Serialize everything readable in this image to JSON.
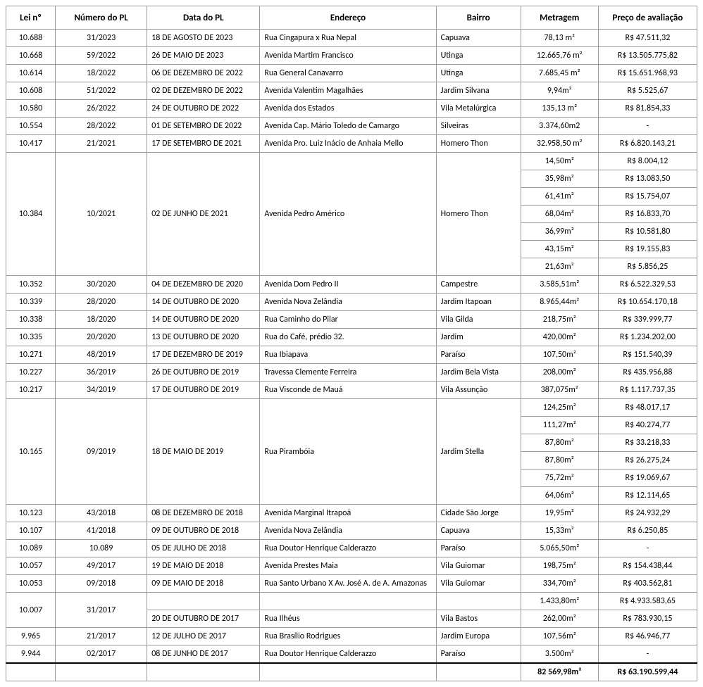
{
  "headers": {
    "lei": "Lei nº",
    "pl": "Número do PL",
    "data": "Data do PL",
    "endereco": "Endereço",
    "bairro": "Bairro",
    "metragem": "Metragem",
    "preco": "Preço de avaliação"
  },
  "rows": [
    {
      "lei": "10.688",
      "pl": "31/2023",
      "data": "18 DE AGOSTO DE 2023",
      "end": "Rua Cingapura x Rua Nepal",
      "bai": "Capuava",
      "subs": [
        {
          "met": "78,13 m²",
          "preco": "R$ 47.511,32"
        }
      ]
    },
    {
      "lei": "10.668",
      "pl": "59/2022",
      "data": "26 DE MAIO DE 2023",
      "end": "Avenida Martim Francisco",
      "bai": "Utinga",
      "subs": [
        {
          "met": "12.665,76 m²",
          "preco": "R$ 13.505.775,82"
        }
      ]
    },
    {
      "lei": "10.614",
      "pl": "18/2022",
      "data": "06 DE DEZEMBRO DE 2022",
      "end": "Rua General Canavarro",
      "bai": "Utinga",
      "subs": [
        {
          "met": "7.685,45 m²",
          "preco": "R$ 15.651.968,93"
        }
      ]
    },
    {
      "lei": "10.608",
      "pl": "51/2022",
      "data": "02 DE DEZEMBRO DE 2022",
      "end": "Avenida Valentim Magalhães",
      "bai": "Jardim Silvana",
      "subs": [
        {
          "met": "9,94m²",
          "preco": "R$ 5.525,67"
        }
      ]
    },
    {
      "lei": "10.580",
      "pl": "26/2022",
      "data": "24 DE OUTUBRO DE 2022",
      "end": "Avenida dos Estados",
      "bai": "Vila Metalúrgica",
      "subs": [
        {
          "met": "135,13 m²",
          "preco": "R$ 81.854,33"
        }
      ]
    },
    {
      "lei": "10.554",
      "pl": "28/2022",
      "data": "01 DE SETEMBRO DE 2022",
      "end": "Avenida Cap. Mário Toledo de Camargo",
      "bai": "Silveiras",
      "subs": [
        {
          "met": "3.374,60m2",
          "preco": "-"
        }
      ]
    },
    {
      "lei": "10.417",
      "pl": "21/2021",
      "data": "17 DE SETEMBRO DE 2021",
      "end": "Avenida Pro. Luiz Inácio de Anhaia Mello",
      "bai": "Homero Thon",
      "subs": [
        {
          "met": "32.958,50 m²",
          "preco": "R$ 6.820.143,21"
        }
      ]
    },
    {
      "lei": "10.384",
      "pl": "10/2021",
      "data": "02 DE JUNHO DE 2021",
      "end": "Avenida Pedro Américo",
      "bai": "Homero Thon",
      "subs": [
        {
          "met": "14,50m²",
          "preco": "R$ 8.004,12"
        },
        {
          "met": "35,98m²",
          "preco": "R$ 13.083,50"
        },
        {
          "met": "61,41m²",
          "preco": "R$ 15.754,07"
        },
        {
          "met": "68,04m²",
          "preco": "R$ 16.833,70"
        },
        {
          "met": "36,99m²",
          "preco": "R$ 10.581,80"
        },
        {
          "met": "43,15m²",
          "preco": "R$ 19.155,83"
        },
        {
          "met": "21,63m²",
          "preco": "R$ 5.856,25"
        }
      ]
    },
    {
      "lei": "10.352",
      "pl": "30/2020",
      "data": "04 DE DEZEMBRO DE 2020",
      "end": "Avenida Dom Pedro II",
      "bai": "Campestre",
      "subs": [
        {
          "met": "3.585,51m²",
          "preco": "R$ 6.522.329,53"
        }
      ]
    },
    {
      "lei": "10.339",
      "pl": "28/2020",
      "data": "14 DE OUTUBRO DE 2020",
      "end": "Avenida Nova Zelândia",
      "bai": "Jardim Itapoan",
      "subs": [
        {
          "met": "8.965,44m²",
          "preco": "R$ 10.654.170,18"
        }
      ]
    },
    {
      "lei": "10.338",
      "pl": "18/2020",
      "data": "14 DE OUTUBRO DE 2020",
      "end": "Rua Caminho do Pilar",
      "bai": "Vila Gilda",
      "subs": [
        {
          "met": "218,75m²",
          "preco": "R$ 339.999,77"
        }
      ]
    },
    {
      "lei": "10.335",
      "pl": "20/2020",
      "data": "13 DE OUTUBRO DE 2020",
      "end": "Rua do Café, prédio 32.",
      "bai": "Jardim",
      "subs": [
        {
          "met": "420,00m²",
          "preco": "R$ 1.234.202,00"
        }
      ]
    },
    {
      "lei": "10.271",
      "pl": "48/2019",
      "data": "17 DE DEZEMBRO DE 2019",
      "end": "Rua Ibiapava",
      "bai": "Paraíso",
      "subs": [
        {
          "met": "107,50m²",
          "preco": "R$ 151.540,39"
        }
      ]
    },
    {
      "lei": "10.227",
      "pl": "36/2019",
      "data": "26 DE OUTUBRO DE 2019",
      "end": "Travessa Clemente Ferreira",
      "bai": "Jardim Bela Vista",
      "subs": [
        {
          "met": "208,00m²",
          "preco": "R$ 435.956,88"
        }
      ]
    },
    {
      "lei": "10.217",
      "pl": "34/2019",
      "data": "17 DE OUTUBRO DE 2019",
      "end": "Rua Visconde de Mauá",
      "bai": "Vila Assunção",
      "subs": [
        {
          "met": "387,075m²",
          "preco": "R$ 1.117.737,35"
        }
      ]
    },
    {
      "lei": "10.165",
      "pl": "09/2019",
      "data": "18 DE MAIO DE 2019",
      "end": "Rua Pirambóia",
      "bai": "Jardim Stella",
      "subs": [
        {
          "met": "124,25m²",
          "preco": "R$ 48.017,17"
        },
        {
          "met": "111,27m²",
          "preco": "R$ 40.274,77"
        },
        {
          "met": "87,80m²",
          "preco": "R$ 33.218,33"
        },
        {
          "met": "87,80m²",
          "preco": "R$ 26.275,24"
        },
        {
          "met": "75,72m²",
          "preco": "R$ 19.069,67"
        },
        {
          "met": "64,06m²",
          "preco": "R$ 12.114,65"
        }
      ]
    },
    {
      "lei": "10.123",
      "pl": "43/2018",
      "data": "08 DE DEZEMBRO DE 2018",
      "end": "Avenida Marginal Itrapoã",
      "bai": "Cidade São Jorge",
      "subs": [
        {
          "met": "19,95m²",
          "preco": "R$ 24.932,29"
        }
      ]
    },
    {
      "lei": "10.107",
      "pl": "41/2018",
      "data": "09 DE OUTUBRO DE 2018",
      "end": "Avenida Nova Zelândia",
      "bai": "Capuava",
      "subs": [
        {
          "met": "15,33m²",
          "preco": "R$ 6.250,85"
        }
      ]
    },
    {
      "lei": "10.089",
      "pl": "10.089",
      "data": "05 DE JULHO DE 2018",
      "end": "Rua Doutor Henrique Calderazzo",
      "bai": "Paraíso",
      "subs": [
        {
          "met": "5.065,50m²",
          "preco": "-"
        }
      ]
    },
    {
      "lei": "10.057",
      "pl": "49/2017",
      "data": "19 DE MAIO DE 2018",
      "end": "Avenida Prestes Maia",
      "bai": "Vila Guiomar",
      "subs": [
        {
          "met": "198,75m²",
          "preco": "R$ 154.438,44"
        }
      ]
    },
    {
      "lei": "10.053",
      "pl": "09/2018",
      "data": "09 DE MAIO DE 2018",
      "end": "Rua Santo Urbano X Av. José A. de A. Amazonas",
      "bai": "Vila Guiomar",
      "subs": [
        {
          "met": "334,70m²",
          "preco": "R$ 403.562,81"
        }
      ]
    },
    {
      "lei": "10.007",
      "pl": "31/2017",
      "data2": "20 DE OUTUBRO DE 2017",
      "end2": "Rua Ilhéus",
      "bai2": "Vila Bastos",
      "special": true,
      "subs": [
        {
          "met": "1.433,80m²",
          "preco": "R$ 4.933.583,65"
        },
        {
          "met": "262,00m²",
          "preco": "R$ 783.930,15"
        }
      ]
    },
    {
      "lei": "9.965",
      "pl": "21/2017",
      "data": "12 DE JULHO DE 2017",
      "end": "Rua Brasílio Rodrigues",
      "bai": "Jardim Europa",
      "subs": [
        {
          "met": "107,56m²",
          "preco": "R$ 46.946,77"
        }
      ]
    },
    {
      "lei": "9.944",
      "pl": "02/2017",
      "data": "08 DE JUNHO DE 2017",
      "end": "Rua Doutor Henrique Calderazzo",
      "bai": "Paraíso",
      "subs": [
        {
          "met": "3.500m²",
          "preco": "-"
        }
      ]
    }
  ],
  "totals": {
    "metragem": "82 569,98m²",
    "preco": "R$ 63.190.599,44"
  }
}
